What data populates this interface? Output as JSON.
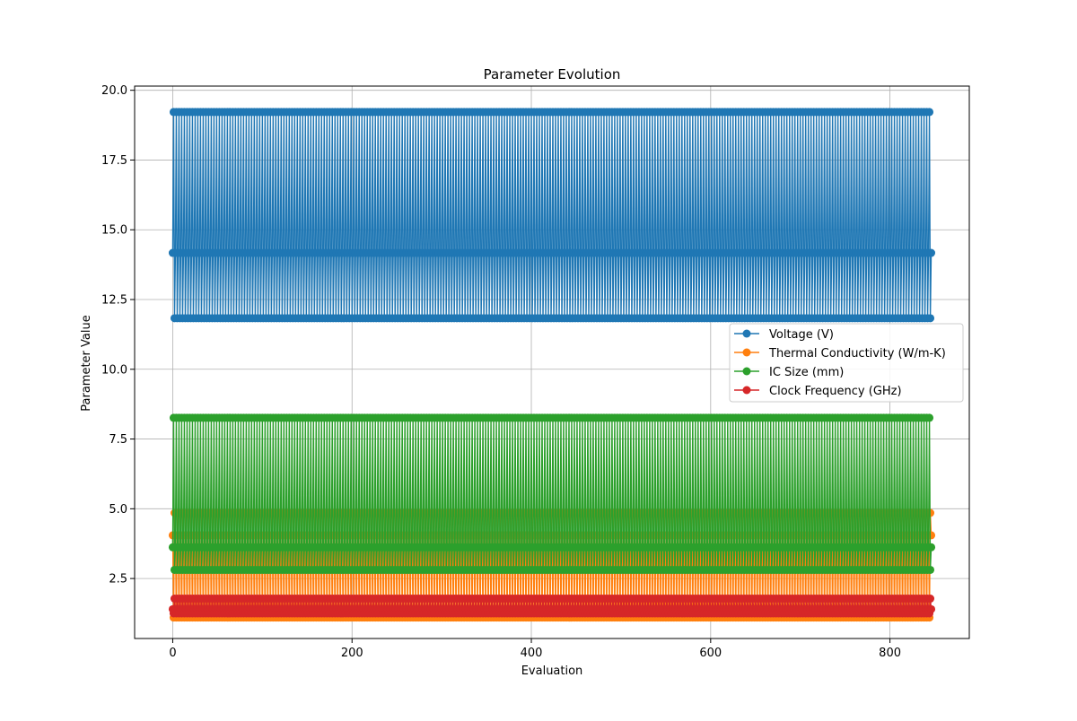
{
  "chart_data": {
    "type": "line",
    "title": "Parameter Evolution",
    "xlabel": "Evaluation",
    "ylabel": "Parameter Value",
    "xlim": [
      -42.5,
      888.5
    ],
    "ylim": [
      0.35,
      20.15
    ],
    "x_ticks": [
      0,
      200,
      400,
      600,
      800
    ],
    "y_ticks": [
      2.5,
      5.0,
      7.5,
      10.0,
      12.5,
      15.0,
      17.5,
      20.0
    ],
    "x_tick_labels": [
      "0",
      "200",
      "400",
      "600",
      "800"
    ],
    "y_tick_labels": [
      "2.5",
      "5.0",
      "7.5",
      "10.0",
      "12.5",
      "15.0",
      "17.5",
      "20.0"
    ],
    "grid": true,
    "legend_position": "center-right",
    "marker": "circle",
    "x_range": [
      0,
      846
    ],
    "series": [
      {
        "name": "Voltage (V)",
        "color": "#1f77b4",
        "cycle": [
          14.17,
          19.22,
          11.83
        ],
        "start": [
          14.17
        ]
      },
      {
        "name": "Thermal Conductivity (W/m-K)",
        "color": "#ff7f0e",
        "cycle": [
          4.05,
          1.1,
          4.85
        ],
        "start": [
          4.05
        ]
      },
      {
        "name": "IC Size (mm)",
        "color": "#2ca02c",
        "cycle": [
          3.62,
          8.26,
          2.81
        ],
        "start": [
          3.62
        ]
      },
      {
        "name": "Clock Frequency (GHz)",
        "color": "#d62728",
        "cycle": [
          1.4,
          1.25,
          1.78
        ],
        "start": [
          1.4
        ]
      }
    ]
  }
}
